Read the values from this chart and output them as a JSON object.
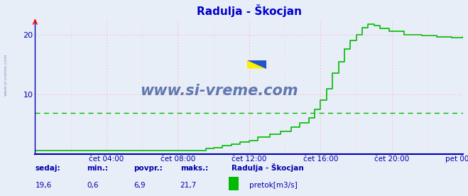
{
  "title": "Radulja - Škocjan",
  "title_color": "#0000cc",
  "bg_color": "#e8eef8",
  "plot_bg_color": "#e8eef8",
  "grid_color_v": "#ff9999",
  "grid_color_h": "#ff9999",
  "line_color": "#00bb00",
  "avg_line_color": "#00bb00",
  "avg_value": 6.9,
  "ymin": 0,
  "ymax": 22.5,
  "ytick_vals": [
    10,
    20
  ],
  "xlabels": [
    "čet 04:00",
    "čet 08:00",
    "čet 12:00",
    "čet 16:00",
    "čet 20:00",
    "pet 00:00"
  ],
  "tick_color": "#0000aa",
  "watermark": "www.si-vreme.com",
  "watermark_color": "#1a3a8a",
  "sedaj_label": "sedaj:",
  "min_label": "min.:",
  "povpr_label": "povpr.:",
  "maks_label": "maks.:",
  "sedaj": "19,6",
  "min_val": "0,6",
  "povpr": "6,9",
  "maks": "21,7",
  "legend_label": "pretok[m3/s]",
  "legend_station": "Radulja - Škocjan",
  "footer_color": "#0000aa",
  "left_watermark": "www.si-vreme.com",
  "left_wm_color": "#6688bb"
}
